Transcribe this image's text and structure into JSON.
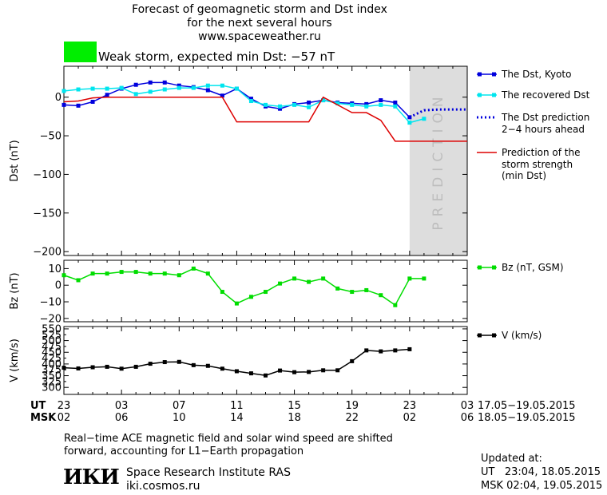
{
  "header": {
    "title_line1": "Forecast of geomagnetic storm and Dst index",
    "title_line2": "for the next several hours",
    "site": "www.spaceweather.ru",
    "storm_status": "Weak storm, expected min Dst: −57 nT",
    "storm_badge_color": "#00ee00"
  },
  "footer": {
    "note_line1": "Real−time ACE magnetic field and solar wind speed are shifted",
    "note_line2": "forward, accounting for L1−Earth propagation",
    "logo_text": "ИКИ",
    "institute": "Space Research Institute RAS",
    "institute_url": "iki.cosmos.ru",
    "updated_label": "Updated at:",
    "updated_ut": "UT   23:04, 18.05.2015",
    "updated_msk": "MSK 02:04, 19.05.2015"
  },
  "chart_data": {
    "type": "line",
    "x_unit": "hours from 23 UT 17.05.2015",
    "x_range": [
      0,
      28
    ],
    "prediction_band": {
      "from": 24,
      "to": 28,
      "label": "PREDICTION",
      "color": "#dddddd"
    },
    "time_axis": {
      "ut_label": "UT",
      "msk_label": "MSK",
      "ut_ticks": [
        "23",
        "03",
        "07",
        "11",
        "15",
        "19",
        "23",
        "03"
      ],
      "msk_ticks": [
        "02",
        "06",
        "10",
        "14",
        "18",
        "22",
        "02",
        "06"
      ],
      "tick_hours": [
        0,
        4,
        8,
        12,
        16,
        20,
        24,
        28
      ],
      "ut_range": "17.05−19.05.2015",
      "msk_range": "18.05−19.05.2015"
    },
    "panels": [
      {
        "id": "dst",
        "ylabel": "Dst (nT)",
        "ylim": [
          -205,
          40
        ],
        "yticks": [
          0,
          -50,
          -100,
          -150,
          -200
        ],
        "ytick_labels": [
          "0",
          "−50",
          "−100",
          "−150",
          "−200"
        ],
        "series": [
          {
            "name": "The Dst, Kyoto",
            "color": "#0000dd",
            "style": "solid-square",
            "x": [
              0,
              1,
              2,
              3,
              4,
              5,
              6,
              7,
              8,
              9,
              10,
              11,
              12,
              13,
              14,
              15,
              16,
              17,
              18,
              19,
              20,
              21,
              22,
              23,
              24
            ],
            "y": [
              -10,
              -11,
              -6,
              3,
              11,
              16,
              19,
              19,
              15,
              13,
              9,
              2,
              11,
              -2,
              -12,
              -15,
              -9,
              -7,
              -4,
              -7,
              -8,
              -9,
              -4,
              -7,
              -26
            ]
          },
          {
            "name": "The recovered Dst",
            "color": "#00e5ee",
            "style": "solid-square",
            "x": [
              0,
              1,
              2,
              3,
              4,
              5,
              6,
              7,
              8,
              9,
              10,
              11,
              12,
              13,
              14,
              15,
              16,
              17,
              18,
              19,
              20,
              21,
              22,
              23,
              24,
              25
            ],
            "y": [
              8,
              10,
              11,
              11,
              12,
              4,
              7,
              10,
              12,
              12,
              15,
              15,
              11,
              -5,
              -10,
              -12,
              -10,
              -13,
              -4,
              -8,
              -10,
              -12,
              -10,
              -12,
              -33,
              -28
            ]
          },
          {
            "name": "The Dst prediction",
            "name_line2": "2−4 hours ahead",
            "color": "#0000dd",
            "style": "dotted",
            "x": [
              24,
              25,
              26,
              27,
              28
            ],
            "y": [
              -26,
              -17,
              -16,
              -16,
              -16
            ]
          },
          {
            "name": "Prediction of the",
            "name_line2": "storm strength",
            "name_line3": "(min Dst)",
            "color": "#dd0000",
            "style": "step",
            "x": [
              0,
              1,
              2,
              3,
              4,
              5,
              6,
              7,
              8,
              9,
              10,
              11,
              12,
              13,
              14,
              15,
              16,
              17,
              18,
              19,
              20,
              21,
              22,
              23,
              24,
              25,
              26,
              27,
              28
            ],
            "y": [
              -6,
              -5,
              -1,
              0,
              0,
              0,
              0,
              0,
              0,
              0,
              0,
              0,
              -32,
              -32,
              -32,
              -32,
              -32,
              -32,
              0,
              -10,
              -20,
              -20,
              -30,
              -57,
              -57,
              -57,
              -57,
              -57,
              -57
            ]
          }
        ]
      },
      {
        "id": "bz",
        "ylabel": "Bz (nT)",
        "ylim": [
          -22,
          15
        ],
        "yticks": [
          10,
          0,
          -10,
          -20
        ],
        "ytick_labels": [
          "10",
          "0",
          "−10",
          "−20"
        ],
        "series": [
          {
            "name": "Bz (nT, GSM)",
            "color": "#00dd00",
            "style": "solid-square",
            "x": [
              0,
              1,
              2,
              3,
              4,
              5,
              6,
              7,
              8,
              9,
              10,
              11,
              12,
              13,
              14,
              15,
              16,
              17,
              18,
              19,
              20,
              21,
              22,
              23,
              24,
              25
            ],
            "y": [
              6,
              3,
              7,
              7,
              8,
              8,
              7,
              7,
              6,
              10,
              7,
              -4,
              -11,
              -7,
              -4,
              1,
              4,
              2,
              4,
              -2,
              -4,
              -3,
              -6,
              -12,
              4,
              4
            ]
          }
        ]
      },
      {
        "id": "v",
        "ylabel": "V (km/s)",
        "ylim": [
          270,
          560
        ],
        "yticks": [
          300,
          350,
          400,
          450,
          500,
          550
        ],
        "ytick_labels": [
          "300",
          "350",
          "400",
          "450",
          "500",
          "550"
        ],
        "yticks_minor": [
          325,
          375,
          425,
          475,
          525
        ],
        "ytick_minor_labels": [
          "325",
          "375",
          "425",
          "475",
          "525"
        ],
        "series": [
          {
            "name": "V (km/s)",
            "color": "#000000",
            "style": "solid-square",
            "x": [
              0,
              1,
              2,
              3,
              4,
              5,
              6,
              7,
              8,
              9,
              10,
              11,
              12,
              13,
              14,
              15,
              16,
              17,
              18,
              19,
              20,
              21,
              22,
              23,
              24
            ],
            "y": [
              384,
              381,
              386,
              388,
              380,
              388,
              401,
              408,
              409,
              395,
              392,
              380,
              369,
              360,
              351,
              372,
              365,
              366,
              373,
              373,
              412,
              458,
              454,
              458,
              463
            ]
          }
        ]
      }
    ]
  }
}
